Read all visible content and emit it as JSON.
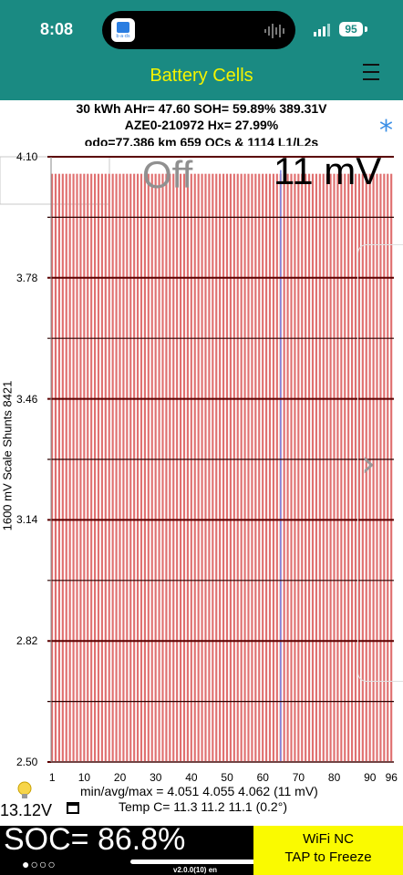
{
  "status_bar": {
    "time": "8:08",
    "battery_level": "95",
    "app_tile_text": "b·a·ds"
  },
  "header": {
    "title": "Battery Cells",
    "accent_color": "#1a8a82",
    "title_color": "#f4f400"
  },
  "info": {
    "line1": "30 kWh  AHr= 47.60  SOH= 59.89%   389.31V",
    "line2": "AZE0-210972   Hx= 27.99%",
    "line3": "odo=77,386 km 659 QCs & 1114 L1/L2s"
  },
  "chart_data": {
    "type": "bar",
    "yaxis_title": "1600 mV Scale   Shunts 8421",
    "ylim": [
      2.5,
      4.1
    ],
    "y_ticks": [
      "4.10",
      "3.78",
      "3.46",
      "3.14",
      "2.82",
      "2.50"
    ],
    "x_ticks": [
      "1",
      "10",
      "20",
      "30",
      "40",
      "50",
      "60",
      "70",
      "80",
      "90",
      "96"
    ],
    "cell_count": 96,
    "cell_voltage_min": 4.051,
    "cell_voltage_avg": 4.055,
    "cell_voltage_max": 4.062,
    "highlighted_cell": 65,
    "bar_color": "#e07070",
    "highlight_color": "#7b86e8",
    "overlay_left": "Off",
    "overlay_right": "11 mV"
  },
  "stats": {
    "minmax": "min/avg/max = 4.051  4.055  4.062   (11 mV)",
    "temp": "Temp C= 11.3   11.2   11.1   (0.2°)",
    "aux_voltage": "13.12V"
  },
  "footer": {
    "soc": "SOC= 86.8%",
    "dots": "●○○○",
    "version": "v2.0.0(10) en",
    "wifi_status": "WiFi NC",
    "freeze_action": "TAP to Freeze",
    "wifi_bg": "#fafa00"
  }
}
